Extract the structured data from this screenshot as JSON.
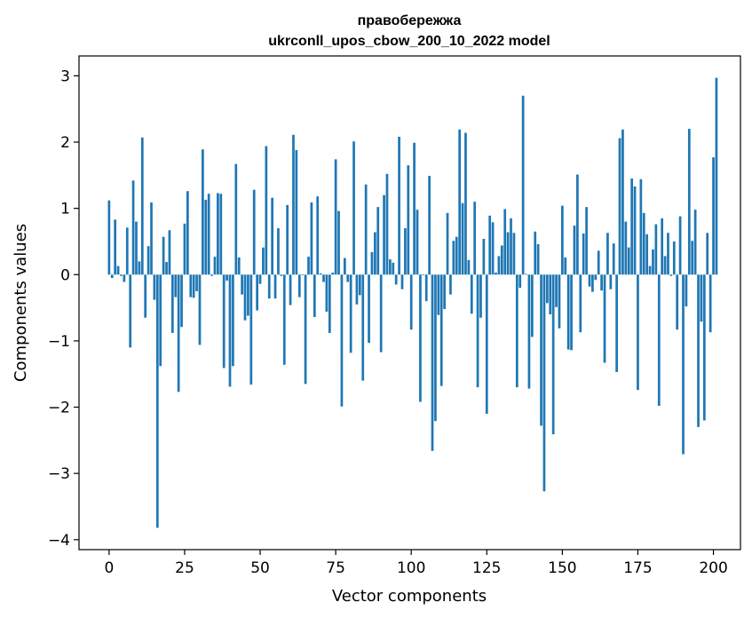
{
  "chart_data": {
    "type": "bar",
    "title_line1": "правобережжа",
    "title_line2": "ukrconll_upos_cbow_200_10_2022 model",
    "xlabel": "Vector components",
    "ylabel": "Components values",
    "xlim": [
      -9.95,
      208.95
    ],
    "ylim": [
      -4.15,
      3.3
    ],
    "xticks": [
      0,
      25,
      50,
      75,
      100,
      125,
      150,
      175,
      200
    ],
    "yticks": [
      -4,
      -3,
      -2,
      -1,
      0,
      1,
      2,
      3
    ],
    "ytick_labels": [
      "−4",
      "−3",
      "−2",
      "−1",
      "0",
      "1",
      "2",
      "3"
    ],
    "bar_color": "#1f77b4",
    "values": [
      1.12,
      -0.05,
      0.83,
      0.13,
      -0.02,
      -0.11,
      0.71,
      -1.1,
      1.42,
      0.8,
      0.2,
      2.07,
      -0.65,
      0.43,
      1.09,
      -0.38,
      -3.82,
      -1.38,
      0.57,
      0.19,
      0.67,
      -0.88,
      -0.34,
      -1.77,
      -0.79,
      0.77,
      1.26,
      -0.34,
      -0.35,
      -0.25,
      -1.06,
      1.89,
      1.13,
      1.22,
      -0.02,
      0.27,
      1.23,
      1.22,
      -1.41,
      -0.09,
      -1.69,
      -1.38,
      1.67,
      0.26,
      -0.3,
      -0.69,
      -0.62,
      -1.66,
      1.28,
      -0.54,
      -0.14,
      0.41,
      1.94,
      -0.36,
      1.16,
      -0.36,
      0.7,
      -0.02,
      -1.36,
      1.05,
      -0.46,
      2.11,
      1.88,
      -0.34,
      -0.01,
      -1.65,
      0.27,
      1.09,
      -0.64,
      1.18,
      0.02,
      -0.11,
      -0.56,
      -0.88,
      0.03,
      1.74,
      0.96,
      -1.99,
      0.25,
      -0.11,
      -1.18,
      2.01,
      -0.45,
      -0.31,
      -1.6,
      1.36,
      -1.03,
      0.34,
      0.64,
      1.02,
      -1.17,
      1.2,
      1.52,
      0.23,
      0.18,
      -0.15,
      2.08,
      -0.22,
      0.7,
      1.65,
      -0.83,
      1.99,
      0.98,
      -1.92,
      -0.01,
      -0.4,
      1.49,
      -2.66,
      -2.21,
      -0.61,
      -1.68,
      -0.52,
      0.93,
      -0.3,
      0.51,
      0.57,
      2.19,
      1.08,
      2.14,
      0.22,
      -0.59,
      1.1,
      -1.7,
      -0.65,
      0.54,
      -2.1,
      0.89,
      0.79,
      0.03,
      0.28,
      0.44,
      0.99,
      0.64,
      0.85,
      0.63,
      -1.7,
      -0.2,
      2.7,
      0.01,
      -1.72,
      -0.94,
      0.65,
      0.46,
      -2.28,
      -3.27,
      -0.43,
      -0.6,
      -2.41,
      -0.49,
      -0.81,
      1.04,
      0.26,
      -1.13,
      -1.14,
      0.74,
      1.51,
      -0.87,
      0.62,
      1.02,
      -0.18,
      -0.26,
      -0.08,
      0.36,
      -0.24,
      -1.33,
      0.63,
      -0.22,
      0.47,
      -1.47,
      2.06,
      2.19,
      0.8,
      0.41,
      1.45,
      1.33,
      -1.74,
      1.44,
      0.93,
      0.61,
      0.13,
      0.38,
      0.76,
      -1.98,
      0.85,
      0.28,
      0.63,
      -0.02,
      0.5,
      -0.83,
      0.88,
      -2.71,
      -0.48,
      2.2,
      0.51,
      0.98,
      -2.3,
      -0.71,
      -2.2,
      0.63,
      -0.87,
      1.77,
      2.97
    ]
  }
}
